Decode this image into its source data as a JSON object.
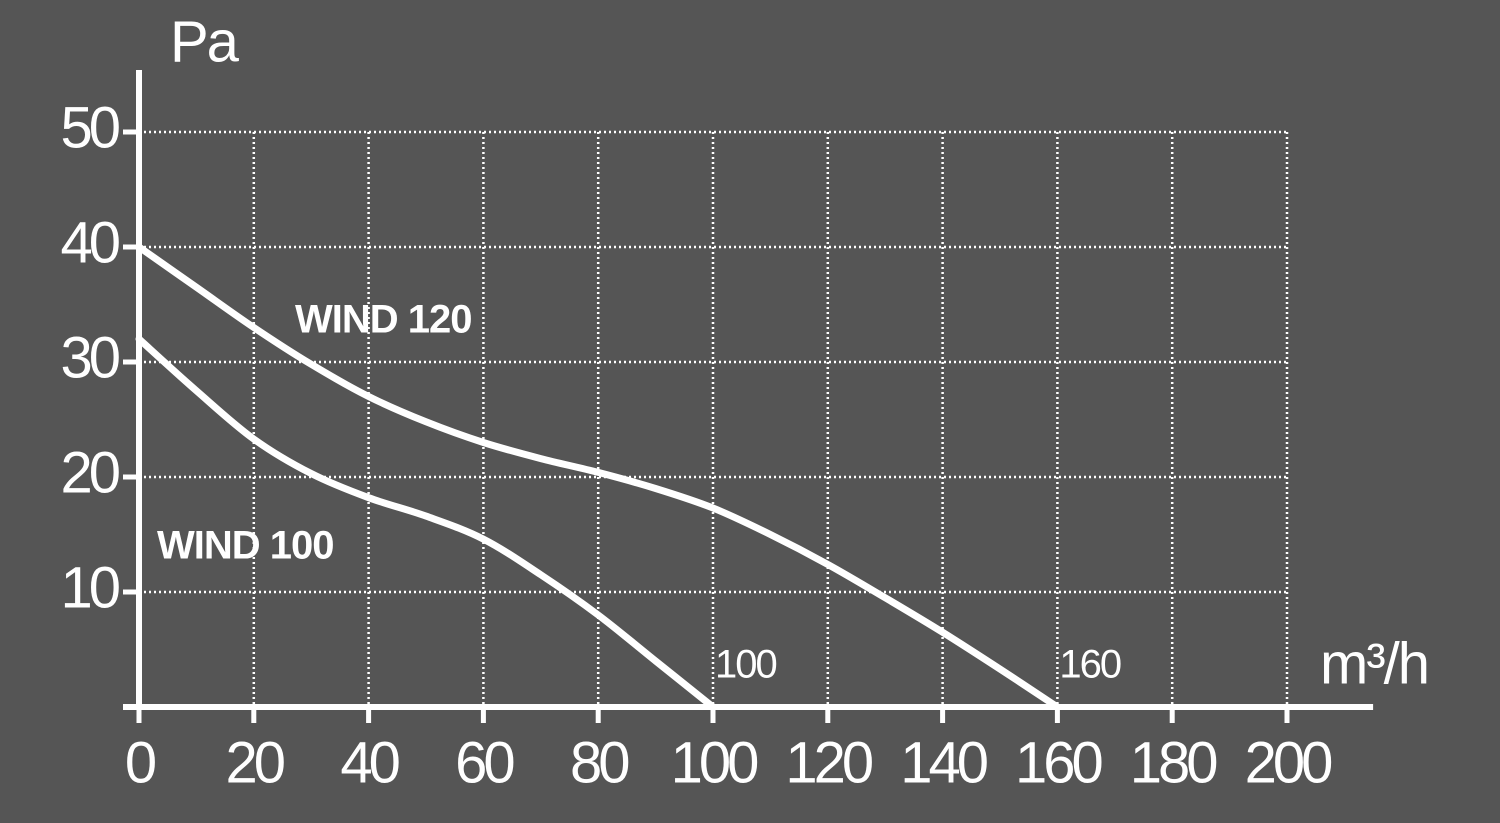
{
  "chart_data": {
    "type": "line",
    "y_label": "Pa",
    "x_label": "m³/h",
    "xlim": [
      0,
      215
    ],
    "ylim": [
      0,
      55
    ],
    "xticks": [
      0,
      20,
      40,
      60,
      80,
      100,
      120,
      140,
      160,
      180,
      200
    ],
    "yticks": [
      10,
      20,
      30,
      40,
      50
    ],
    "grid": true,
    "series": [
      {
        "name": "WIND 120",
        "color": "#ffffff",
        "end_label": "160",
        "x": [
          0,
          10,
          20,
          30,
          40,
          50,
          60,
          70,
          80,
          90,
          100,
          110,
          120,
          130,
          140,
          150,
          160
        ],
        "values": [
          40,
          36.5,
          33,
          29.8,
          27,
          24.8,
          23,
          21.6,
          20.4,
          19,
          17.3,
          15,
          12.4,
          9.5,
          6.5,
          3.3,
          0
        ]
      },
      {
        "name": "WIND 100",
        "color": "#ffffff",
        "end_label": "100",
        "x": [
          0,
          10,
          20,
          30,
          40,
          50,
          60,
          70,
          80,
          90,
          100
        ],
        "values": [
          32,
          27.5,
          23.3,
          20.3,
          18.2,
          16.6,
          14.6,
          11.5,
          8,
          4,
          0
        ]
      }
    ]
  }
}
